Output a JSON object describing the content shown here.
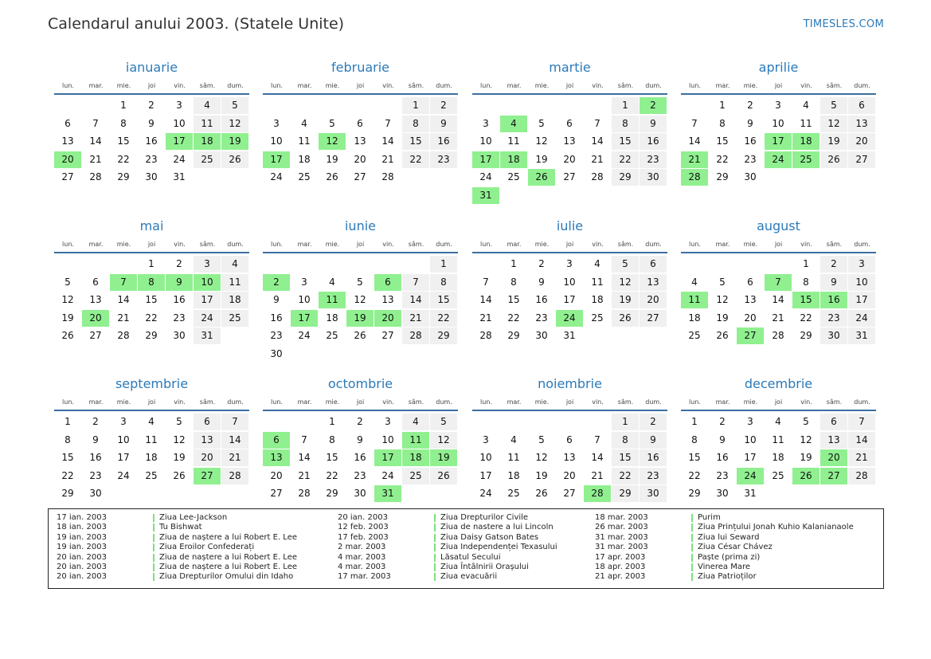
{
  "title": "Calendarul anului 2003. (Statele Unite)",
  "site": "TIMESLES.COM",
  "weekday_labels": [
    "lun.",
    "mar.",
    "mie.",
    "joi",
    "vin.",
    "sâm.",
    "dum."
  ],
  "months": [
    {
      "name": "ianuarie",
      "start": 2,
      "days": 31,
      "holidays": [
        17,
        18,
        19,
        20
      ]
    },
    {
      "name": "februarie",
      "start": 5,
      "days": 28,
      "holidays": [
        12,
        17
      ]
    },
    {
      "name": "martie",
      "start": 5,
      "days": 31,
      "holidays": [
        2,
        4,
        17,
        18,
        26,
        31
      ]
    },
    {
      "name": "aprilie",
      "start": 1,
      "days": 30,
      "holidays": [
        17,
        18,
        21,
        24,
        25,
        28
      ]
    },
    {
      "name": "mai",
      "start": 3,
      "days": 31,
      "holidays": [
        7,
        8,
        9,
        10,
        20
      ]
    },
    {
      "name": "iunie",
      "start": 6,
      "days": 30,
      "holidays": [
        2,
        6,
        11,
        17,
        19,
        20
      ]
    },
    {
      "name": "iulie",
      "start": 1,
      "days": 31,
      "holidays": [
        24
      ]
    },
    {
      "name": "august",
      "start": 4,
      "days": 31,
      "holidays": [
        7,
        11,
        15,
        16,
        27
      ]
    },
    {
      "name": "septembrie",
      "start": 0,
      "days": 30,
      "holidays": [
        27
      ]
    },
    {
      "name": "octombrie",
      "start": 2,
      "days": 31,
      "holidays": [
        6,
        11,
        13,
        17,
        18,
        19,
        31
      ]
    },
    {
      "name": "noiembrie",
      "start": 5,
      "days": 30,
      "holidays": [
        28
      ]
    },
    {
      "name": "decembrie",
      "start": 0,
      "days": 31,
      "holidays": [
        20,
        24,
        26,
        27
      ]
    }
  ],
  "holidays_list": [
    {
      "date": "17 ian. 2003",
      "name": "Ziua Lee-Jackson"
    },
    {
      "date": "18 ian. 2003",
      "name": "Tu Bishwat"
    },
    {
      "date": "19 ian. 2003",
      "name": "Ziua de naștere a lui Robert E. Lee"
    },
    {
      "date": "19 ian. 2003",
      "name": "Ziua Eroilor Confederați"
    },
    {
      "date": "20 ian. 2003",
      "name": "Ziua de naștere a lui Robert E. Lee"
    },
    {
      "date": "20 ian. 2003",
      "name": "Ziua de naștere a lui Robert E. Lee"
    },
    {
      "date": "20 ian. 2003",
      "name": "Ziua Drepturilor Omului din Idaho"
    },
    {
      "date": "20 ian. 2003",
      "name": "Ziua Drepturilor Civile"
    },
    {
      "date": "12 feb. 2003",
      "name": "Ziua de nastere a lui Lincoln"
    },
    {
      "date": "17 feb. 2003",
      "name": "Ziua Daisy Gatson Bates"
    },
    {
      "date": "2 mar. 2003",
      "name": "Ziua Independenței Texasului"
    },
    {
      "date": "4 mar. 2003",
      "name": "Lăsatul Secului"
    },
    {
      "date": "4 mar. 2003",
      "name": "Ziua Întâlnirii Orașului"
    },
    {
      "date": "17 mar. 2003",
      "name": "Ziua evacuării"
    },
    {
      "date": "18 mar. 2003",
      "name": "Purim"
    },
    {
      "date": "26 mar. 2003",
      "name": "Ziua Prințului Jonah Kuhio Kalanianaole"
    },
    {
      "date": "31 mar. 2003",
      "name": "Ziua lui Seward"
    },
    {
      "date": "31 mar. 2003",
      "name": "Ziua César Chávez"
    },
    {
      "date": "17 apr. 2003",
      "name": "Paște (prima zi)"
    },
    {
      "date": "18 apr. 2003",
      "name": "Vinerea Mare"
    },
    {
      "date": "21 apr. 2003",
      "name": "Ziua Patrioților"
    }
  ]
}
